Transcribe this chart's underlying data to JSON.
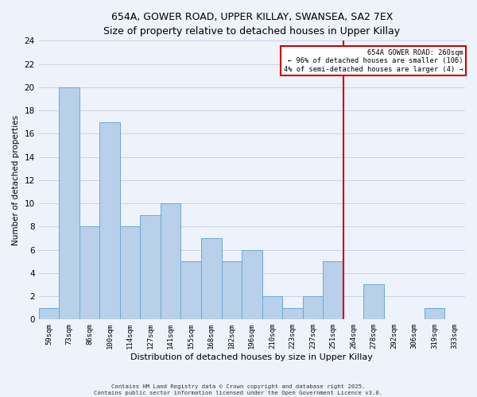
{
  "title": "654A, GOWER ROAD, UPPER KILLAY, SWANSEA, SA2 7EX",
  "subtitle": "Size of property relative to detached houses in Upper Killay",
  "xlabel": "Distribution of detached houses by size in Upper Killay",
  "ylabel": "Number of detached properties",
  "footer_line1": "Contains HM Land Registry data © Crown copyright and database right 2025.",
  "footer_line2": "Contains public sector information licensed under the Open Government Licence v3.0.",
  "bin_labels": [
    "59sqm",
    "73sqm",
    "86sqm",
    "100sqm",
    "114sqm",
    "127sqm",
    "141sqm",
    "155sqm",
    "168sqm",
    "182sqm",
    "196sqm",
    "210sqm",
    "223sqm",
    "237sqm",
    "251sqm",
    "264sqm",
    "278sqm",
    "292sqm",
    "306sqm",
    "319sqm",
    "333sqm"
  ],
  "bar_heights": [
    1,
    20,
    8,
    17,
    8,
    9,
    10,
    5,
    7,
    5,
    6,
    2,
    1,
    2,
    5,
    0,
    3,
    0,
    0,
    1,
    0
  ],
  "bar_color": "#b8d0ea",
  "bar_edge_color": "#6aaad4",
  "grid_color": "#c8d4e8",
  "bg_color": "#eef2fa",
  "vline_x_index": 15,
  "vline_color": "#cc0000",
  "annotation_title": "654A GOWER ROAD: 260sqm",
  "annotation_line2": "← 96% of detached houses are smaller (106)",
  "annotation_line3": "4% of semi-detached houses are larger (4) →",
  "annotation_box_color": "#ffffff",
  "annotation_border_color": "#cc0000",
  "ylim": [
    0,
    24
  ],
  "yticks": [
    0,
    2,
    4,
    6,
    8,
    10,
    12,
    14,
    16,
    18,
    20,
    22,
    24
  ]
}
